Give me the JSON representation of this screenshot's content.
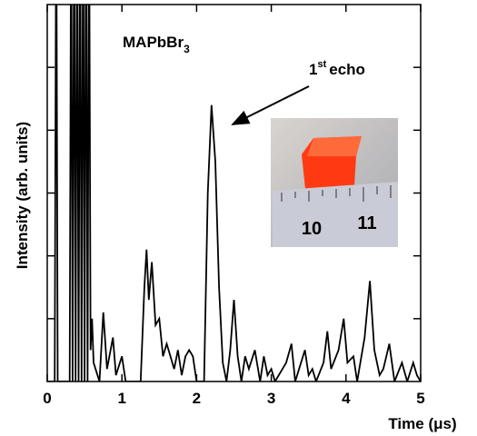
{
  "chart_data": {
    "type": "line",
    "xlabel": "Time (μs)",
    "ylabel": "Intensity (arb. units)",
    "sample_label": "MAPbBr",
    "sample_label_sub": "3",
    "echo_label": "1",
    "echo_label_sup": "st",
    "echo_label_rest": "echo",
    "inset_labels": [
      "10",
      "11"
    ],
    "color": "#000000",
    "xlim": [
      0,
      5
    ],
    "xticks": [
      0,
      1,
      2,
      3,
      4,
      5
    ],
    "ylim": [
      0,
      6
    ],
    "yticks": [
      1,
      2,
      3,
      4,
      5
    ],
    "x": [
      0,
      0.1,
      0.12,
      0.14,
      0.3,
      0.32,
      0.34,
      0.36,
      0.38,
      0.4,
      0.42,
      0.44,
      0.46,
      0.48,
      0.5,
      0.52,
      0.54,
      0.56,
      0.58,
      0.6,
      0.62,
      0.7,
      0.75,
      0.8,
      0.88,
      0.92,
      1.0,
      1.05,
      1.25,
      1.3,
      1.33,
      1.36,
      1.4,
      1.45,
      1.5,
      1.55,
      1.6,
      1.7,
      1.75,
      1.8,
      1.85,
      1.9,
      1.95,
      2.0,
      2.1,
      2.15,
      2.2,
      2.25,
      2.3,
      2.35,
      2.4,
      2.45,
      2.5,
      2.55,
      2.6,
      2.65,
      2.7,
      2.78,
      2.85,
      2.9,
      2.95,
      3.0,
      3.05,
      3.2,
      3.27,
      3.32,
      3.45,
      3.5,
      3.55,
      3.6,
      3.7,
      3.75,
      3.8,
      3.9,
      3.97,
      4.02,
      4.1,
      4.15,
      4.25,
      4.32,
      4.38,
      4.45,
      4.5,
      4.58,
      4.65,
      4.75,
      4.82,
      4.9,
      4.95,
      5.0
    ],
    "values": [
      0,
      0,
      8,
      0,
      0,
      8,
      0,
      8,
      0,
      8,
      0,
      8,
      0,
      8,
      0,
      8,
      0,
      8,
      0.5,
      1.0,
      0.3,
      0,
      1.1,
      0.2,
      0.7,
      0.1,
      0.4,
      0,
      0,
      1.5,
      2.1,
      1.3,
      1.9,
      0.9,
      1.0,
      0.4,
      0.6,
      0.2,
      0.5,
      0.1,
      0.4,
      0.5,
      0.4,
      0,
      0,
      3.0,
      4.4,
      3.5,
      1.5,
      0.3,
      0,
      0.5,
      1.3,
      0.4,
      0,
      0.4,
      0.2,
      0.5,
      0,
      0.4,
      0.1,
      0.2,
      0,
      0.3,
      0.6,
      0,
      0.5,
      0.1,
      0.2,
      0,
      0.3,
      0.8,
      0.2,
      0.5,
      1.0,
      0.3,
      0.4,
      0,
      0.7,
      1.6,
      0.5,
      0.1,
      0.2,
      0.6,
      0,
      0.3,
      0,
      0.3,
      0.1,
      0
    ]
  }
}
